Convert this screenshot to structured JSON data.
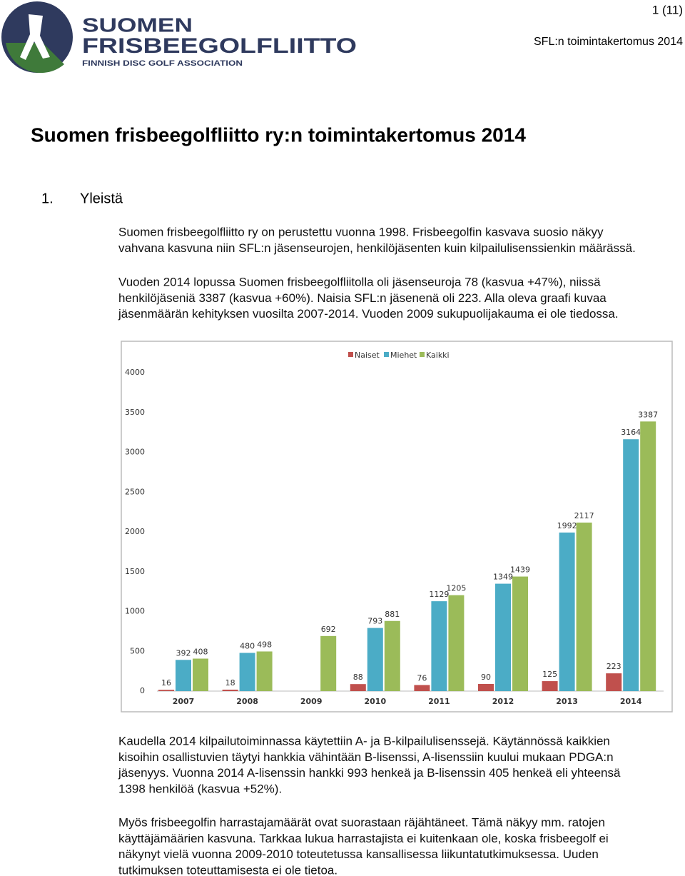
{
  "header": {
    "page_number": "1 (11)",
    "running_title": "SFL:n toimintakertomus 2014",
    "logo": {
      "line1": "SUOMEN",
      "line2": "FRISBEEGOLFLIITTO",
      "line3": "FINNISH DISC GOLF ASSOCIATION"
    }
  },
  "title": "Suomen frisbeegolfliitto ry:n toimintakertomus 2014",
  "section": {
    "number": "1.",
    "title": "Yleistä"
  },
  "paragraphs_before": [
    {
      "lines": [
        "Suomen frisbeegolfliitto ry on perustettu vuonna 1998. Frisbeegolfin kasvava suosio näkyy",
        "vahvana kasvuna niin SFL:n jäsenseurojen, henkilöjäsenten kuin kilpailulisenssienkin määrässä."
      ]
    },
    {
      "lines": [
        "Vuoden 2014 lopussa Suomen frisbeegolfliitolla oli jäsenseuroja 78 (kasvua +47%), niissä",
        "henkilöjäseniä 3387 (kasvua +60%). Naisia SFL:n jäsenenä oli 223. Alla oleva graafi kuvaa",
        "jäsenmäärän kehityksen vuosilta 2007-2014. Vuoden 2009 sukupuolijakauma ei ole tiedossa."
      ]
    }
  ],
  "chart_data": {
    "type": "bar",
    "categories": [
      "2007",
      "2008",
      "2009",
      "2010",
      "2011",
      "2012",
      "2013",
      "2014"
    ],
    "series": [
      {
        "name": "Naiset",
        "color": "#c0504d",
        "values": [
          16,
          18,
          null,
          88,
          76,
          90,
          125,
          223
        ]
      },
      {
        "name": "Miehet",
        "color": "#4bacc6",
        "values": [
          392,
          480,
          null,
          793,
          1129,
          1349,
          1992,
          3164
        ]
      },
      {
        "name": "Kaikki",
        "color": "#9bbb59",
        "values": [
          408,
          498,
          692,
          881,
          1205,
          1439,
          2117,
          3387
        ]
      }
    ],
    "ylim": [
      0,
      4000
    ],
    "yticks": [
      0,
      500,
      1000,
      1500,
      2000,
      2500,
      3000,
      3500,
      4000
    ],
    "grid": false,
    "legend": "top"
  },
  "paragraphs_after": [
    {
      "lines": [
        "Kaudella 2014 kilpailutoiminnassa käytettiin A- ja B-kilpailulisenssejä. Käytännössä kaikkien",
        "kisoihin osallistuvien täytyi hankkia vähintään B-lisenssi, A-lisenssiin kuului mukaan PDGA:n",
        "jäsenyys. Vuonna 2014 A-lisenssin hankki 993 henkeä ja B-lisenssin 405 henkeä eli yhteensä",
        "1398 henkilöä (kasvua +52%)."
      ]
    },
    {
      "lines": [
        "Myös frisbeegolfin harrastajamäärät ovat suorastaan räjähtäneet. Tämä näkyy mm. ratojen",
        "käyttäjämäärien kasvuna. Tarkkaa lukua harrastajista ei kuitenkaan ole, koska frisbeegolf ei",
        "näkynyt vielä vuonna 2009-2010 toteutetussa kansallisessa liikuntatutkimuksessa. Uuden",
        "tutkimuksen toteuttamisesta ei ole tietoa."
      ]
    }
  ]
}
